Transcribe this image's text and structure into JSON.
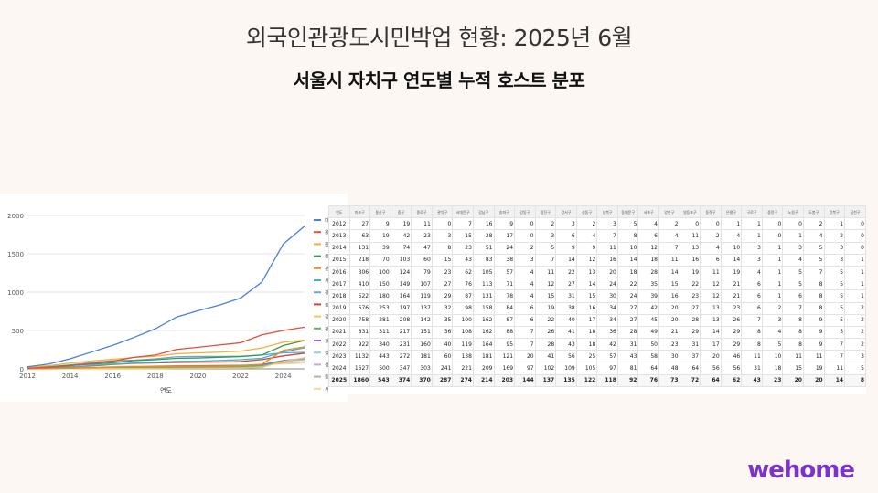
{
  "slide": {
    "title": "외국인관광도시민박업 현황: 2025년 6월",
    "subtitle": "서울시 자치구 연도별 누적 호스트 분포",
    "logo": "wehome"
  },
  "chart_data": {
    "type": "line",
    "title": "",
    "xlabel": "연도",
    "ylabel": "",
    "x": [
      2012,
      2013,
      2014,
      2015,
      2016,
      2017,
      2018,
      2019,
      2020,
      2021,
      2022,
      2023,
      2024,
      2025
    ],
    "xlim": [
      2012,
      2025
    ],
    "ylim": [
      0,
      2000
    ],
    "xticks": [
      2012,
      2014,
      2016,
      2018,
      2020,
      2022,
      2024
    ],
    "yticks": [
      0,
      500,
      1000,
      1500,
      2000
    ],
    "grid": true,
    "legend": "right",
    "series": [
      {
        "name": "마포구",
        "color": "#4a7fe0",
        "values": [
          27,
          63,
          131,
          218,
          306,
          410,
          522,
          676,
          758,
          831,
          922,
          1132,
          1627,
          1860
        ]
      },
      {
        "name": "용산구",
        "color": "#e0503c",
        "values": [
          9,
          19,
          39,
          70,
          100,
          150,
          180,
          253,
          281,
          311,
          340,
          443,
          500,
          543
        ]
      },
      {
        "name": "중구",
        "color": "#f2b233",
        "values": [
          19,
          42,
          74,
          103,
          124,
          149,
          164,
          197,
          208,
          217,
          231,
          272,
          347,
          374
        ]
      },
      {
        "name": "종로구",
        "color": "#3a9a4a",
        "values": [
          11,
          23,
          47,
          60,
          79,
          107,
          119,
          137,
          142,
          151,
          160,
          181,
          303,
          370
        ]
      },
      {
        "name": "관악구",
        "color": "#f08a24",
        "values": [
          0,
          3,
          8,
          15,
          23,
          27,
          29,
          32,
          35,
          36,
          40,
          60,
          241,
          287
        ]
      },
      {
        "name": "서대문구",
        "color": "#41b3c6",
        "values": [
          7,
          15,
          23,
          43,
          62,
          76,
          87,
          98,
          100,
          108,
          119,
          138,
          221,
          274
        ]
      },
      {
        "name": "강남구",
        "color": "#6fa0e8",
        "values": [
          16,
          28,
          51,
          83,
          105,
          113,
          131,
          158,
          162,
          162,
          164,
          181,
          209,
          214
        ]
      },
      {
        "name": "송파구",
        "color": "#c9483c",
        "values": [
          9,
          17,
          24,
          38,
          57,
          71,
          78,
          84,
          87,
          88,
          95,
          121,
          169,
          203
        ]
      },
      {
        "name": "강동구",
        "color": "#f5c35b",
        "values": [
          0,
          0,
          2,
          3,
          4,
          4,
          4,
          6,
          6,
          7,
          7,
          20,
          97,
          144
        ]
      },
      {
        "name": "광진구",
        "color": "#5fb468",
        "values": [
          2,
          3,
          5,
          7,
          11,
          12,
          15,
          19,
          22,
          26,
          28,
          41,
          102,
          137
        ]
      },
      {
        "name": "강서구",
        "color": "#a65bc8",
        "values": [
          3,
          6,
          9,
          14,
          22,
          27,
          31,
          38,
          40,
          41,
          43,
          56,
          109,
          135
        ]
      },
      {
        "name": "성동구",
        "color": "#8fd0db",
        "values": [
          2,
          4,
          9,
          12,
          13,
          14,
          15,
          16,
          17,
          18,
          18,
          25,
          105,
          122
        ]
      },
      {
        "name": "성북구",
        "color": "#d8a0e0",
        "values": [
          3,
          7,
          11,
          16,
          20,
          24,
          30,
          34,
          34,
          36,
          42,
          57,
          97,
          118
        ]
      },
      {
        "name": "동대문구",
        "color": "#b8b3ad",
        "values": [
          5,
          8,
          10,
          14,
          18,
          22,
          24,
          27,
          27,
          28,
          31,
          43,
          81,
          92
        ]
      },
      {
        "name": "서초구",
        "color": "#f3d69a",
        "values": [
          4,
          6,
          12,
          18,
          28,
          35,
          39,
          42,
          45,
          49,
          50,
          58,
          64,
          76
        ]
      }
    ]
  },
  "table": {
    "headers": [
      "연도",
      "마포구",
      "용산구",
      "중구",
      "종로구",
      "관악구",
      "서대문구",
      "강남구",
      "송파구",
      "강동구",
      "광진구",
      "강서구",
      "성동구",
      "성북구",
      "동대문구",
      "서초구",
      "양천구",
      "영등포구",
      "동작구",
      "은평구",
      "구로구",
      "중랑구",
      "노원구",
      "도봉구",
      "강북구",
      "금천구"
    ],
    "rows": [
      [
        "2012",
        "27",
        "9",
        "19",
        "11",
        "0",
        "7",
        "16",
        "9",
        "0",
        "2",
        "3",
        "2",
        "3",
        "5",
        "4",
        "2",
        "0",
        "0",
        "1",
        "1",
        "0",
        "0",
        "2",
        "1",
        "0"
      ],
      [
        "2013",
        "63",
        "19",
        "42",
        "23",
        "3",
        "15",
        "28",
        "17",
        "0",
        "3",
        "6",
        "4",
        "7",
        "8",
        "6",
        "4",
        "11",
        "2",
        "4",
        "1",
        "0",
        "1",
        "4",
        "2",
        "0"
      ],
      [
        "2014",
        "131",
        "39",
        "74",
        "47",
        "8",
        "23",
        "51",
        "24",
        "2",
        "5",
        "9",
        "9",
        "11",
        "10",
        "12",
        "7",
        "13",
        "4",
        "10",
        "3",
        "1",
        "3",
        "5",
        "3",
        "0"
      ],
      [
        "2015",
        "218",
        "70",
        "103",
        "60",
        "15",
        "43",
        "83",
        "38",
        "3",
        "7",
        "14",
        "12",
        "16",
        "14",
        "18",
        "11",
        "16",
        "6",
        "14",
        "3",
        "1",
        "4",
        "5",
        "3",
        "1"
      ],
      [
        "2016",
        "306",
        "100",
        "124",
        "79",
        "23",
        "62",
        "105",
        "57",
        "4",
        "11",
        "22",
        "13",
        "20",
        "18",
        "28",
        "14",
        "19",
        "11",
        "19",
        "4",
        "1",
        "5",
        "7",
        "5",
        "1"
      ],
      [
        "2017",
        "410",
        "150",
        "149",
        "107",
        "27",
        "76",
        "113",
        "71",
        "4",
        "12",
        "27",
        "14",
        "24",
        "22",
        "35",
        "15",
        "22",
        "12",
        "21",
        "6",
        "1",
        "5",
        "8",
        "5",
        "1"
      ],
      [
        "2018",
        "522",
        "180",
        "164",
        "119",
        "29",
        "87",
        "131",
        "78",
        "4",
        "15",
        "31",
        "15",
        "30",
        "24",
        "39",
        "16",
        "23",
        "12",
        "21",
        "6",
        "1",
        "6",
        "8",
        "5",
        "1"
      ],
      [
        "2019",
        "676",
        "253",
        "197",
        "137",
        "32",
        "98",
        "158",
        "84",
        "6",
        "19",
        "38",
        "16",
        "34",
        "27",
        "42",
        "20",
        "27",
        "13",
        "23",
        "6",
        "2",
        "7",
        "8",
        "5",
        "2"
      ],
      [
        "2020",
        "758",
        "281",
        "208",
        "142",
        "35",
        "100",
        "162",
        "87",
        "6",
        "22",
        "40",
        "17",
        "34",
        "27",
        "45",
        "20",
        "28",
        "13",
        "26",
        "7",
        "3",
        "8",
        "9",
        "5",
        "2"
      ],
      [
        "2021",
        "831",
        "311",
        "217",
        "151",
        "36",
        "108",
        "162",
        "88",
        "7",
        "26",
        "41",
        "18",
        "36",
        "28",
        "49",
        "21",
        "29",
        "14",
        "29",
        "8",
        "4",
        "8",
        "9",
        "5",
        "2"
      ],
      [
        "2022",
        "922",
        "340",
        "231",
        "160",
        "40",
        "119",
        "164",
        "95",
        "7",
        "28",
        "43",
        "18",
        "42",
        "31",
        "50",
        "23",
        "31",
        "17",
        "29",
        "8",
        "5",
        "8",
        "9",
        "7",
        "2"
      ],
      [
        "2023",
        "1132",
        "443",
        "272",
        "181",
        "60",
        "138",
        "181",
        "121",
        "20",
        "41",
        "56",
        "25",
        "57",
        "43",
        "58",
        "30",
        "37",
        "20",
        "46",
        "11",
        "10",
        "11",
        "11",
        "7",
        "3"
      ],
      [
        "2024",
        "1627",
        "500",
        "347",
        "303",
        "241",
        "221",
        "209",
        "169",
        "97",
        "102",
        "109",
        "105",
        "97",
        "81",
        "64",
        "48",
        "64",
        "56",
        "56",
        "31",
        "18",
        "15",
        "19",
        "11",
        "5"
      ]
    ],
    "total_row": [
      "2025",
      "1860",
      "543",
      "374",
      "370",
      "287",
      "274",
      "214",
      "203",
      "144",
      "137",
      "135",
      "122",
      "118",
      "92",
      "76",
      "73",
      "72",
      "64",
      "62",
      "43",
      "23",
      "20",
      "20",
      "14",
      "8"
    ]
  }
}
